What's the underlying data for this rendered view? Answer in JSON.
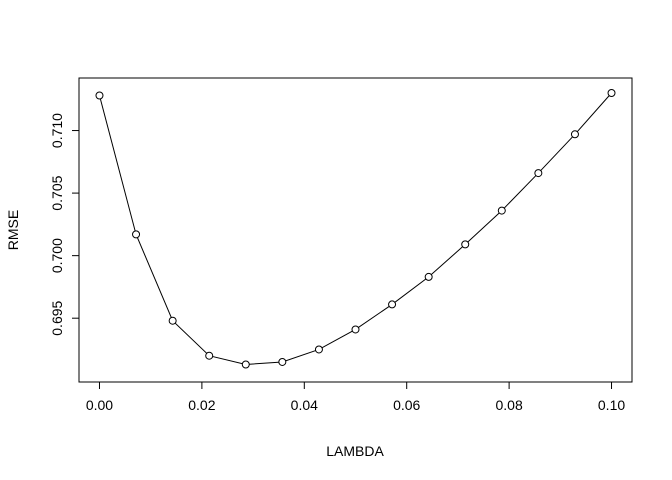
{
  "chart_data": {
    "type": "line",
    "title": "",
    "xlabel": "LAMBDA",
    "ylabel": "RMSE",
    "xlim": [
      -0.004,
      0.104
    ],
    "ylim": [
      0.6899,
      0.7142
    ],
    "xticks": [
      0.0,
      0.02,
      0.04,
      0.06,
      0.08,
      0.1
    ],
    "xtick_labels": [
      "0.00",
      "0.02",
      "0.04",
      "0.06",
      "0.08",
      "0.10"
    ],
    "yticks": [
      0.695,
      0.7,
      0.705,
      0.71
    ],
    "ytick_labels": [
      "0.695",
      "0.700",
      "0.705",
      "0.710"
    ],
    "grid": false,
    "legend": "none",
    "marker": "open-circle",
    "line_color": "#000000",
    "x": [
      0.0,
      0.00714,
      0.01429,
      0.02143,
      0.02857,
      0.03571,
      0.04286,
      0.05,
      0.05714,
      0.06429,
      0.07143,
      0.07857,
      0.08571,
      0.09286,
      0.1
    ],
    "series": [
      {
        "values": [
          0.7128,
          0.7017,
          0.6948,
          0.692,
          0.6913,
          0.6915,
          0.6925,
          0.6941,
          0.6961,
          0.6983,
          0.7009,
          0.7036,
          0.7066,
          0.7097,
          0.713
        ]
      }
    ]
  }
}
